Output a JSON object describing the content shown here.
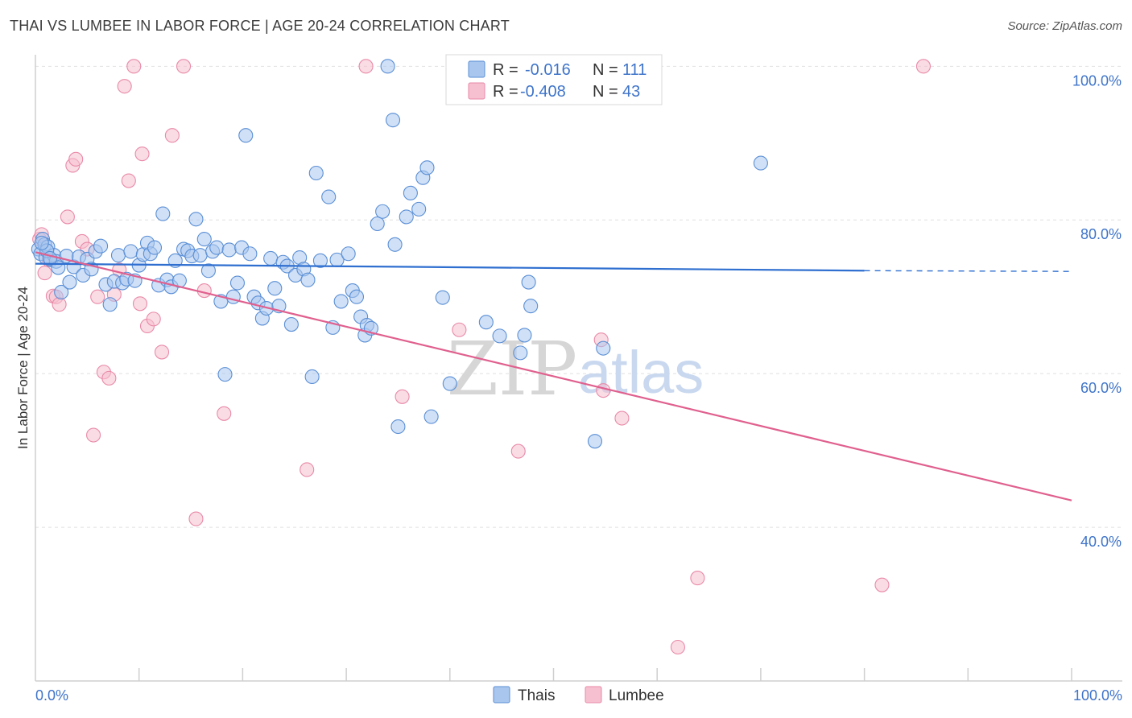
{
  "header": {
    "title": "THAI VS LUMBEE IN LABOR FORCE | AGE 20-24 CORRELATION CHART",
    "source": "Source: ZipAtlas.com"
  },
  "legend": {
    "thais": {
      "r_label": "R =",
      "r_value": "-0.016",
      "n_label": "N =",
      "n_value": "111"
    },
    "lumbee": {
      "r_label": "R =",
      "r_value": "-0.408",
      "n_label": "N =",
      "n_value": "43"
    }
  },
  "bottom_legend": [
    "Thais",
    "Lumbee"
  ],
  "watermark": {
    "zip": "ZIP",
    "atlas": "atlas"
  },
  "colors": {
    "thais_fill": "#a9c7ee",
    "thais_stroke": "#5a8fd6",
    "thais_line": "#2f6fd0",
    "lumbee_fill": "#f6c0d0",
    "lumbee_stroke": "#e98aa8",
    "lumbee_line": "#e0608e",
    "grid": "#e0e0e0",
    "tick_label": "#3f74c9"
  },
  "chart_data": {
    "type": "scatter",
    "title": "THAI VS LUMBEE IN LABOR FORCE | AGE 20-24 CORRELATION CHART",
    "xlabel": "",
    "ylabel": "In Labor Force | Age 20-24",
    "xlim": [
      0,
      100
    ],
    "ylim": [
      20,
      101.5
    ],
    "x_tick_labels": [
      "0.0%",
      "100.0%"
    ],
    "y_ticks": [
      40,
      60,
      80,
      100
    ],
    "y_tick_labels": [
      "40.0%",
      "60.0%",
      "80.0%",
      "100.0%"
    ],
    "grid": true,
    "legend_position": "top-center",
    "series": [
      {
        "name": "Thais",
        "r": -0.016,
        "n": 111,
        "trend": {
          "x": [
            0,
            80
          ],
          "y": [
            74.3,
            73.4
          ],
          "dashed_to_x": 100,
          "dashed_to_y": 73.3
        },
        "points": [
          [
            0.3,
            76.2
          ],
          [
            0.5,
            75.6
          ],
          [
            0.7,
            77.5
          ],
          [
            0.9,
            76.8
          ],
          [
            1.0,
            75.1
          ],
          [
            1.2,
            76.5
          ],
          [
            1.5,
            74.8
          ],
          [
            1.8,
            75.4
          ],
          [
            2.0,
            74.6
          ],
          [
            2.2,
            73.8
          ],
          [
            2.5,
            70.6
          ],
          [
            3.0,
            75.3
          ],
          [
            3.3,
            71.9
          ],
          [
            3.7,
            73.9
          ],
          [
            4.2,
            75.2
          ],
          [
            4.6,
            72.8
          ],
          [
            5.0,
            74.9
          ],
          [
            5.4,
            73.6
          ],
          [
            5.8,
            75.9
          ],
          [
            6.3,
            76.6
          ],
          [
            6.8,
            71.6
          ],
          [
            7.2,
            69.0
          ],
          [
            7.6,
            72.0
          ],
          [
            8.0,
            75.4
          ],
          [
            8.4,
            71.8
          ],
          [
            8.8,
            72.3
          ],
          [
            9.2,
            75.9
          ],
          [
            9.6,
            72.1
          ],
          [
            10.0,
            74.1
          ],
          [
            10.4,
            75.5
          ],
          [
            10.8,
            77.0
          ],
          [
            11.1,
            75.6
          ],
          [
            11.5,
            76.4
          ],
          [
            11.9,
            71.5
          ],
          [
            12.3,
            80.8
          ],
          [
            12.7,
            72.2
          ],
          [
            13.1,
            71.3
          ],
          [
            13.5,
            74.7
          ],
          [
            13.9,
            72.1
          ],
          [
            14.3,
            76.2
          ],
          [
            14.7,
            76.0
          ],
          [
            15.1,
            75.3
          ],
          [
            15.5,
            80.1
          ],
          [
            15.9,
            75.4
          ],
          [
            16.3,
            77.5
          ],
          [
            16.7,
            73.4
          ],
          [
            17.1,
            75.9
          ],
          [
            17.5,
            76.4
          ],
          [
            17.9,
            69.4
          ],
          [
            18.3,
            59.9
          ],
          [
            18.7,
            76.1
          ],
          [
            19.1,
            70.0
          ],
          [
            19.5,
            71.8
          ],
          [
            19.9,
            76.4
          ],
          [
            20.3,
            91.0
          ],
          [
            20.7,
            75.6
          ],
          [
            21.1,
            70.0
          ],
          [
            21.5,
            69.2
          ],
          [
            21.9,
            67.2
          ],
          [
            22.3,
            68.5
          ],
          [
            22.7,
            75.0
          ],
          [
            23.1,
            71.1
          ],
          [
            23.5,
            68.8
          ],
          [
            23.9,
            74.5
          ],
          [
            24.3,
            74.0
          ],
          [
            24.7,
            66.4
          ],
          [
            25.1,
            72.8
          ],
          [
            25.5,
            75.1
          ],
          [
            25.9,
            73.6
          ],
          [
            26.3,
            72.2
          ],
          [
            26.7,
            59.6
          ],
          [
            27.1,
            86.1
          ],
          [
            27.5,
            74.7
          ],
          [
            28.3,
            83.0
          ],
          [
            28.7,
            66.0
          ],
          [
            29.1,
            74.8
          ],
          [
            29.5,
            69.4
          ],
          [
            30.2,
            75.6
          ],
          [
            30.6,
            70.8
          ],
          [
            31.0,
            70.0
          ],
          [
            31.4,
            67.4
          ],
          [
            31.8,
            65.0
          ],
          [
            32.0,
            66.3
          ],
          [
            32.4,
            65.9
          ],
          [
            33.0,
            79.5
          ],
          [
            33.5,
            81.1
          ],
          [
            34.0,
            100.0
          ],
          [
            34.5,
            93.0
          ],
          [
            34.7,
            76.8
          ],
          [
            35.0,
            53.1
          ],
          [
            35.8,
            80.4
          ],
          [
            36.2,
            83.5
          ],
          [
            37.0,
            81.4
          ],
          [
            37.4,
            85.5
          ],
          [
            37.8,
            86.8
          ],
          [
            38.2,
            54.4
          ],
          [
            39.3,
            69.9
          ],
          [
            40.0,
            58.7
          ],
          [
            40.5,
            100.0
          ],
          [
            43.5,
            66.7
          ],
          [
            44.8,
            64.9
          ],
          [
            46.8,
            62.7
          ],
          [
            47.2,
            65.0
          ],
          [
            47.6,
            71.9
          ],
          [
            47.8,
            68.8
          ],
          [
            54.0,
            51.2
          ],
          [
            54.8,
            63.3
          ],
          [
            70.0,
            87.4
          ],
          [
            1.1,
            76.0
          ],
          [
            0.6,
            77.0
          ],
          [
            1.4,
            75.0
          ]
        ]
      },
      {
        "name": "Lumbee",
        "r": -0.408,
        "n": 43,
        "trend": {
          "x": [
            0,
            100
          ],
          "y": [
            75.8,
            43.5
          ]
        },
        "points": [
          [
            0.4,
            77.5
          ],
          [
            0.6,
            78.1
          ],
          [
            0.9,
            73.1
          ],
          [
            1.3,
            74.8
          ],
          [
            1.7,
            70.1
          ],
          [
            2.0,
            70.0
          ],
          [
            2.3,
            69.0
          ],
          [
            3.1,
            80.4
          ],
          [
            3.6,
            87.1
          ],
          [
            3.9,
            87.9
          ],
          [
            4.5,
            77.2
          ],
          [
            5.0,
            76.2
          ],
          [
            5.6,
            52.0
          ],
          [
            6.0,
            70.0
          ],
          [
            6.6,
            60.2
          ],
          [
            7.1,
            59.4
          ],
          [
            7.6,
            70.3
          ],
          [
            8.1,
            73.5
          ],
          [
            8.6,
            97.4
          ],
          [
            9.0,
            85.1
          ],
          [
            9.5,
            100.0
          ],
          [
            10.1,
            69.1
          ],
          [
            10.3,
            88.6
          ],
          [
            10.8,
            66.2
          ],
          [
            11.4,
            67.1
          ],
          [
            12.2,
            62.8
          ],
          [
            13.2,
            91.0
          ],
          [
            14.3,
            100.0
          ],
          [
            15.5,
            41.1
          ],
          [
            16.3,
            70.8
          ],
          [
            18.2,
            54.8
          ],
          [
            26.2,
            47.5
          ],
          [
            31.9,
            100.0
          ],
          [
            35.4,
            57.0
          ],
          [
            40.9,
            65.7
          ],
          [
            46.6,
            49.9
          ],
          [
            54.6,
            64.4
          ],
          [
            54.8,
            57.8
          ],
          [
            56.6,
            54.2
          ],
          [
            63.9,
            33.4
          ],
          [
            62.0,
            24.4
          ],
          [
            81.7,
            32.5
          ],
          [
            85.7,
            100.0
          ]
        ]
      }
    ]
  }
}
